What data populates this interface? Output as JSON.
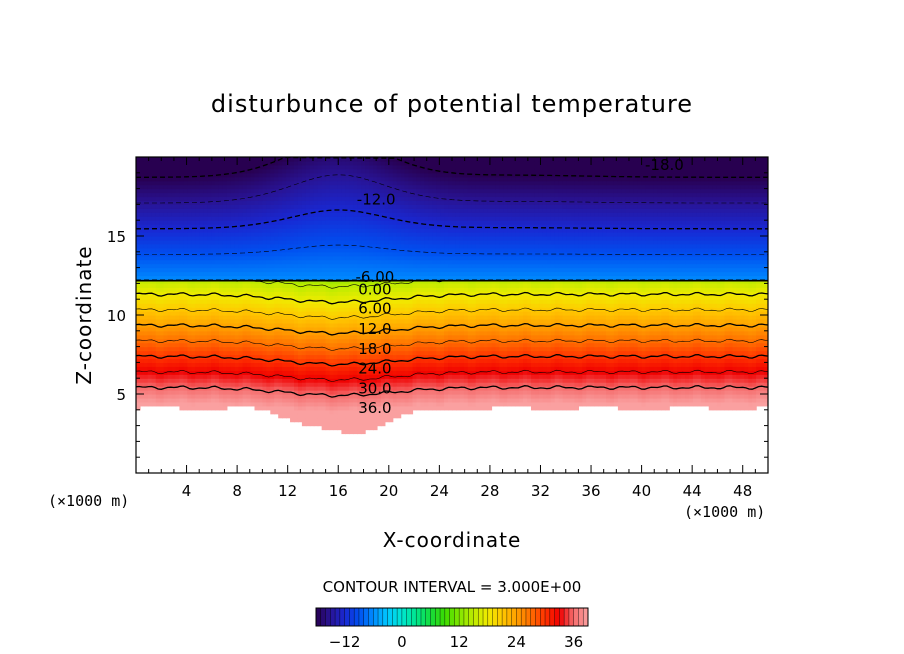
{
  "chart_data": {
    "type": "heatmap",
    "title": "disturbunce of potential temperature",
    "xlabel": "X-coordinate",
    "ylabel": "Z-coordinate",
    "x_unit": "(×1000 m)",
    "y_unit": "(×1000 m)",
    "xlim": [
      0,
      50
    ],
    "ylim": [
      0,
      20
    ],
    "x_ticks": [
      4,
      8,
      12,
      16,
      20,
      24,
      28,
      32,
      36,
      40,
      44,
      48
    ],
    "y_ticks": [
      5,
      10,
      15
    ],
    "contour_interval_text": "CONTOUR INTERVAL = 3.000E+00",
    "contour_labels": [
      {
        "text": "-18.0",
        "x": 41.8,
        "z": 19.5
      },
      {
        "text": "-12.0",
        "x": 19.0,
        "z": 17.3
      },
      {
        "text": "-6.00",
        "x": 18.9,
        "z": 12.4
      },
      {
        "text": "0.00",
        "x": 18.9,
        "z": 11.6
      },
      {
        "text": "6.00",
        "x": 18.9,
        "z": 10.4
      },
      {
        "text": "12.0",
        "x": 18.9,
        "z": 9.1
      },
      {
        "text": "18.0",
        "x": 18.9,
        "z": 7.85
      },
      {
        "text": "24.0",
        "x": 18.9,
        "z": 6.6
      },
      {
        "text": "30.0",
        "x": 18.9,
        "z": 5.35
      },
      {
        "text": "36.0",
        "x": 18.9,
        "z": 4.1
      }
    ],
    "colorbar": {
      "min": -18,
      "max": 39,
      "tick_values": [
        -12,
        0,
        12,
        24,
        36
      ],
      "tick_labels": [
        "−12",
        "0",
        "12",
        "24",
        "36"
      ]
    }
  }
}
